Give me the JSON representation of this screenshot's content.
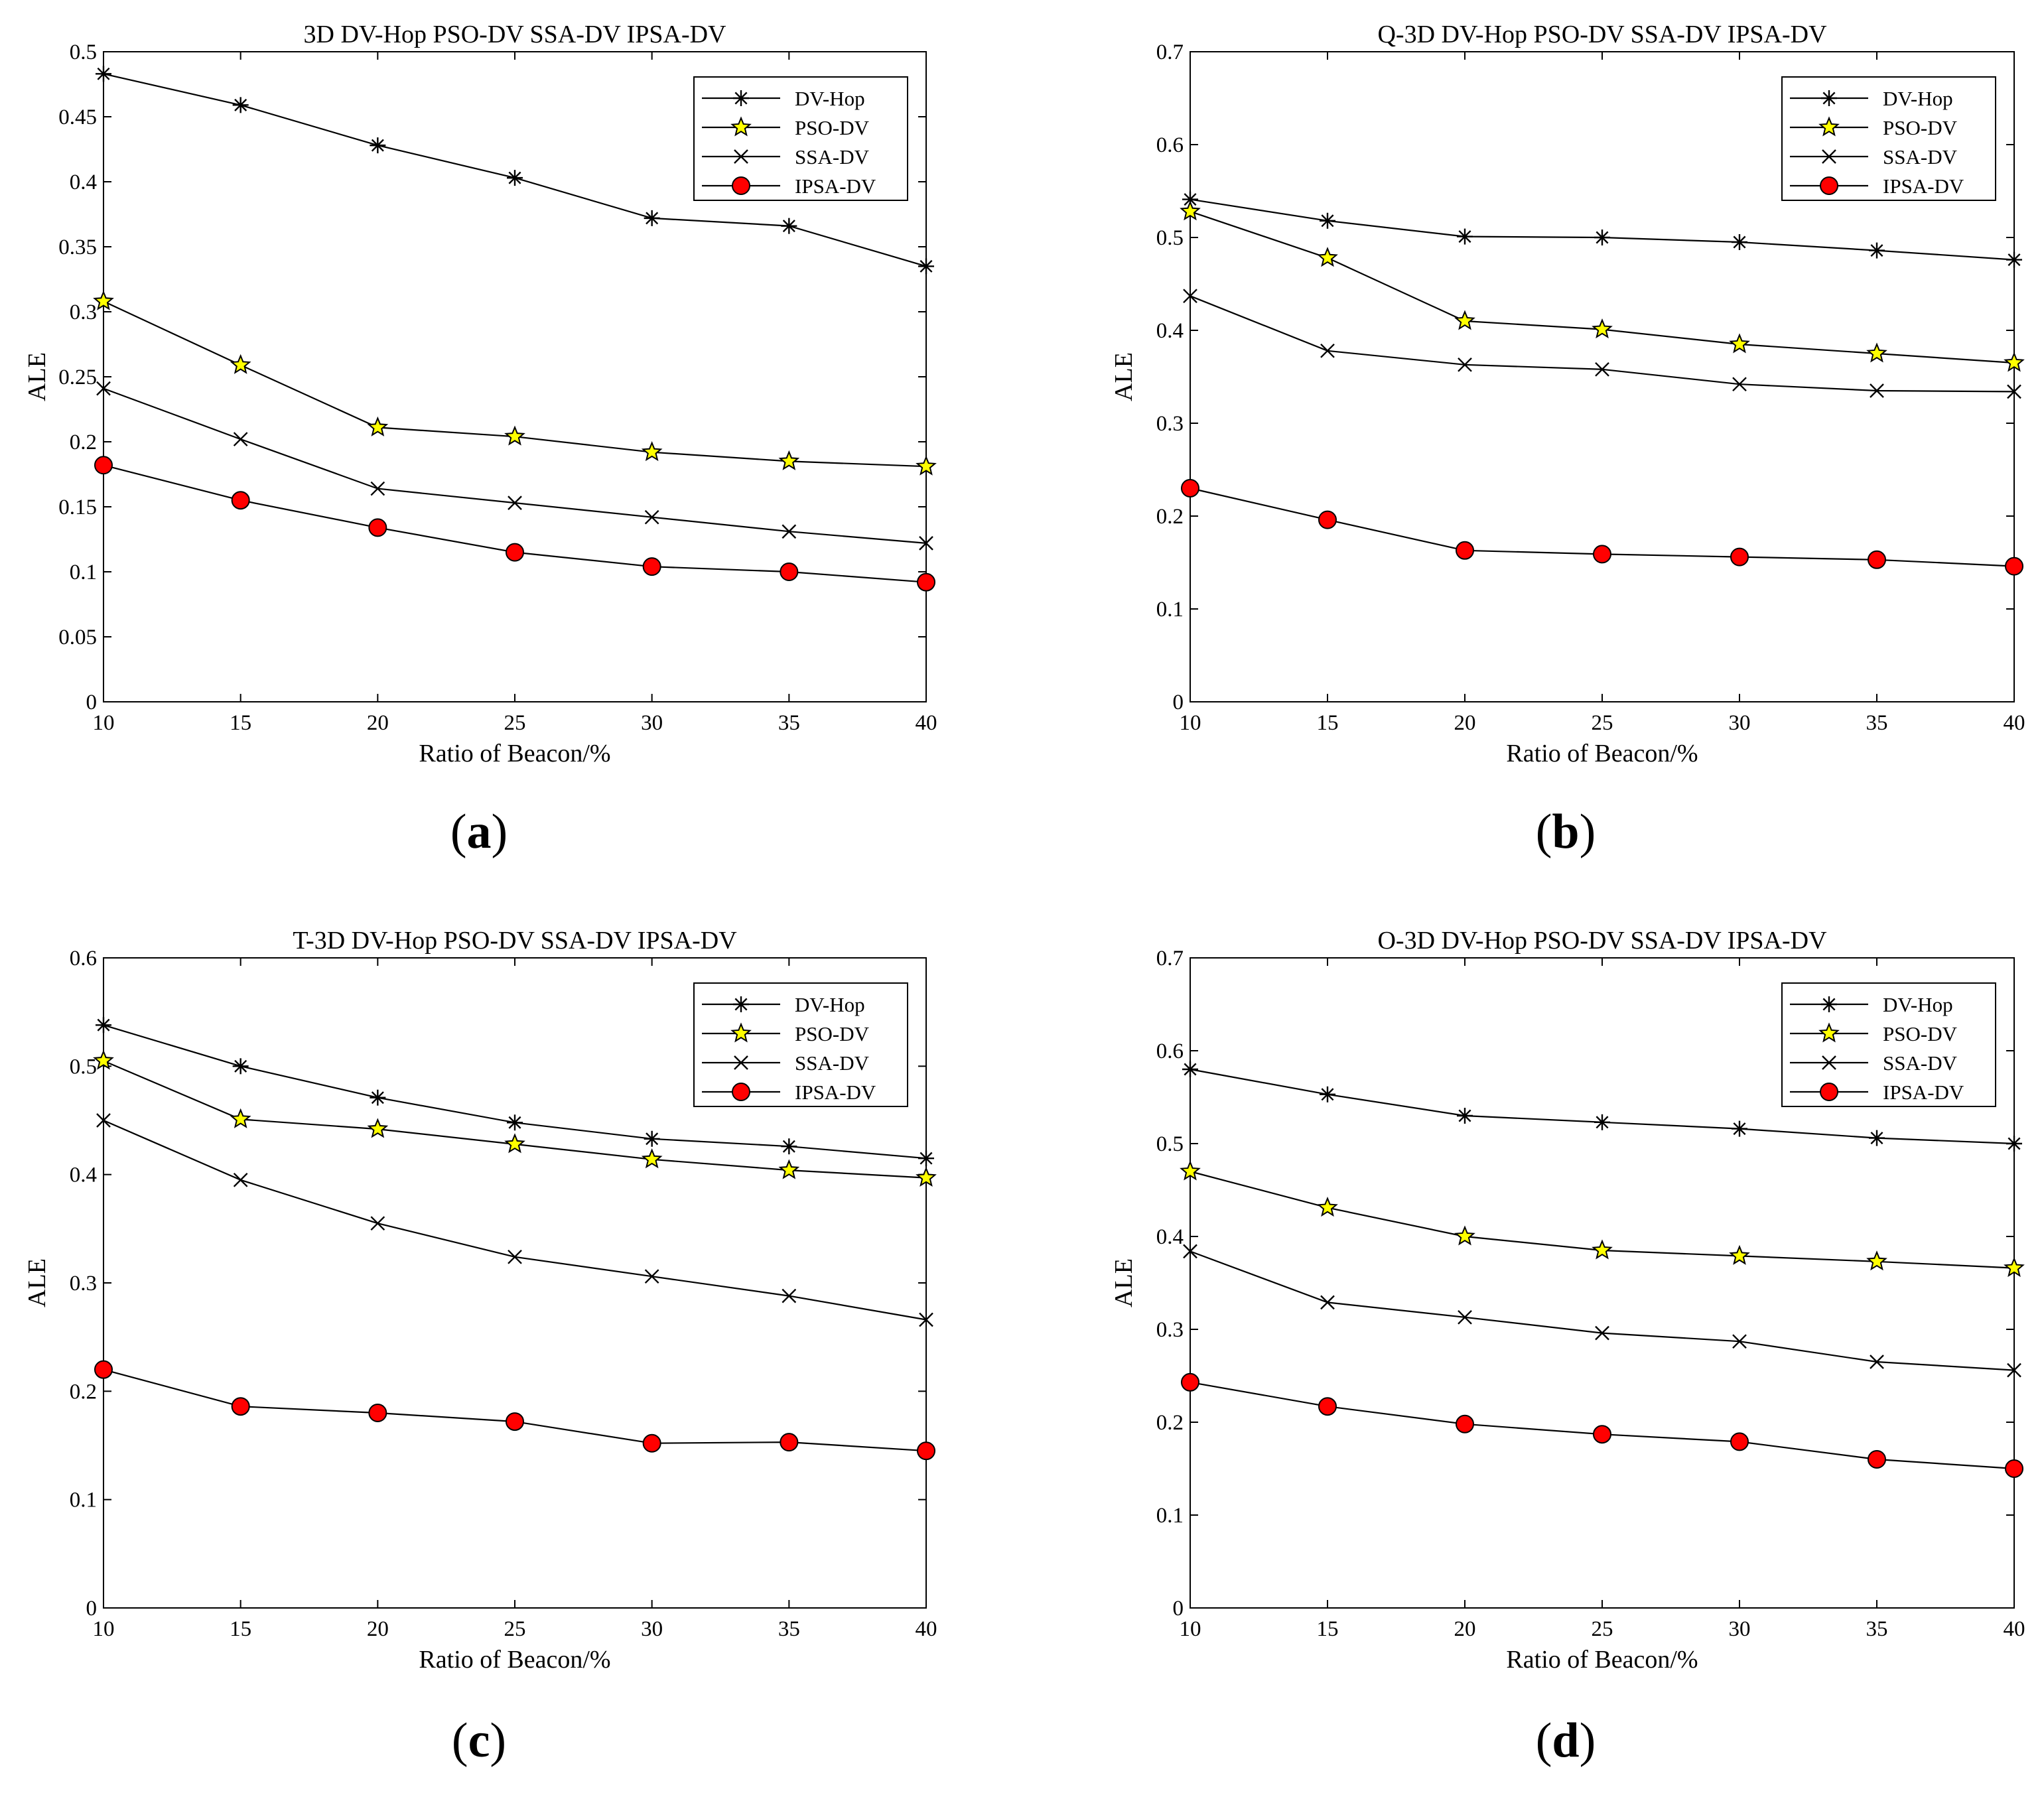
{
  "figure": {
    "colors": {
      "axis": "#000000",
      "line": "#000000",
      "star_fill": "#ffff00",
      "circle_fill": "#ff0000",
      "background": "#ffffff"
    }
  },
  "chart_data": [
    {
      "panel": "a",
      "type": "line",
      "title": "3D DV-Hop PSO-DV SSA-DV IPSA-DV",
      "xlabel": "Ratio of Beacon/%",
      "ylabel": "ALE",
      "xlim": [
        10,
        40
      ],
      "ylim": [
        0,
        0.5
      ],
      "x": [
        10,
        15,
        20,
        25,
        30,
        35,
        40
      ],
      "xticks": [
        "10",
        "15",
        "20",
        "25",
        "30",
        "35",
        "40"
      ],
      "ytick_values": [
        0,
        0.05,
        0.1,
        0.15,
        0.2,
        0.25,
        0.3,
        0.35,
        0.4,
        0.45,
        0.5
      ],
      "yticks": [
        "0",
        "0.05",
        "0.1",
        "0.15",
        "0.2",
        "0.25",
        "0.3",
        "0.35",
        "0.4",
        "0.45",
        "0.5"
      ],
      "legend_position": "top-right",
      "series": [
        {
          "name": "DV-Hop",
          "marker": "asterisk",
          "values": [
            0.483,
            0.459,
            0.428,
            0.403,
            0.372,
            0.366,
            0.335
          ]
        },
        {
          "name": "PSO-DV",
          "marker": "star",
          "values": [
            0.308,
            0.259,
            0.211,
            0.204,
            0.192,
            0.185,
            0.181
          ]
        },
        {
          "name": "SSA-DV",
          "marker": "x",
          "values": [
            0.241,
            0.202,
            0.164,
            0.153,
            0.142,
            0.131,
            0.122
          ]
        },
        {
          "name": "IPSA-DV",
          "marker": "circle",
          "values": [
            0.182,
            0.155,
            0.134,
            0.115,
            0.104,
            0.1,
            0.092
          ]
        }
      ],
      "caption": "(a)"
    },
    {
      "panel": "b",
      "type": "line",
      "title": "Q-3D DV-Hop PSO-DV SSA-DV IPSA-DV",
      "xlabel": "Ratio of Beacon/%",
      "ylabel": "ALE",
      "xlim": [
        10,
        40
      ],
      "ylim": [
        0,
        0.7
      ],
      "x": [
        10,
        15,
        20,
        25,
        30,
        35,
        40
      ],
      "xticks": [
        "10",
        "15",
        "20",
        "25",
        "30",
        "35",
        "40"
      ],
      "ytick_values": [
        0,
        0.1,
        0.2,
        0.3,
        0.4,
        0.5,
        0.6,
        0.7
      ],
      "yticks": [
        "0",
        "0.1",
        "0.2",
        "0.3",
        "0.4",
        "0.5",
        "0.6",
        "0.7"
      ],
      "legend_position": "top-right",
      "series": [
        {
          "name": "DV-Hop",
          "marker": "asterisk",
          "values": [
            0.541,
            0.518,
            0.501,
            0.5,
            0.495,
            0.486,
            0.476
          ]
        },
        {
          "name": "PSO-DV",
          "marker": "star",
          "values": [
            0.528,
            0.478,
            0.41,
            0.401,
            0.385,
            0.375,
            0.365
          ]
        },
        {
          "name": "SSA-DV",
          "marker": "x",
          "values": [
            0.437,
            0.378,
            0.363,
            0.358,
            0.342,
            0.335,
            0.334
          ]
        },
        {
          "name": "IPSA-DV",
          "marker": "circle",
          "values": [
            0.23,
            0.196,
            0.163,
            0.159,
            0.156,
            0.153,
            0.146
          ]
        }
      ],
      "caption": "(b)"
    },
    {
      "panel": "c",
      "type": "line",
      "title": "T-3D DV-Hop PSO-DV SSA-DV IPSA-DV",
      "xlabel": "Ratio of Beacon/%",
      "ylabel": "ALE",
      "xlim": [
        10,
        40
      ],
      "ylim": [
        0,
        0.6
      ],
      "x": [
        10,
        15,
        20,
        25,
        30,
        35,
        40
      ],
      "xticks": [
        "10",
        "15",
        "20",
        "25",
        "30",
        "35",
        "40"
      ],
      "ytick_values": [
        0,
        0.1,
        0.2,
        0.3,
        0.4,
        0.5,
        0.6
      ],
      "yticks": [
        "0",
        "0.1",
        "0.2",
        "0.3",
        "0.4",
        "0.5",
        "0.6"
      ],
      "legend_position": "top-right",
      "series": [
        {
          "name": "DV-Hop",
          "marker": "asterisk",
          "values": [
            0.538,
            0.5,
            0.471,
            0.448,
            0.433,
            0.426,
            0.415
          ]
        },
        {
          "name": "PSO-DV",
          "marker": "star",
          "values": [
            0.505,
            0.451,
            0.442,
            0.428,
            0.414,
            0.404,
            0.397
          ]
        },
        {
          "name": "SSA-DV",
          "marker": "x",
          "values": [
            0.45,
            0.395,
            0.355,
            0.324,
            0.306,
            0.288,
            0.266
          ]
        },
        {
          "name": "IPSA-DV",
          "marker": "circle",
          "values": [
            0.22,
            0.186,
            0.18,
            0.172,
            0.152,
            0.153,
            0.145
          ]
        }
      ],
      "caption": "(c)"
    },
    {
      "panel": "d",
      "type": "line",
      "title": "O-3D DV-Hop PSO-DV SSA-DV IPSA-DV",
      "xlabel": "Ratio of Beacon/%",
      "ylabel": "ALE",
      "xlim": [
        10,
        40
      ],
      "ylim": [
        0,
        0.7
      ],
      "x": [
        10,
        15,
        20,
        25,
        30,
        35,
        40
      ],
      "xticks": [
        "10",
        "15",
        "20",
        "25",
        "30",
        "35",
        "40"
      ],
      "ytick_values": [
        0,
        0.1,
        0.2,
        0.3,
        0.4,
        0.5,
        0.6,
        0.7
      ],
      "yticks": [
        "0",
        "0.1",
        "0.2",
        "0.3",
        "0.4",
        "0.5",
        "0.6",
        "0.7"
      ],
      "legend_position": "top-right",
      "series": [
        {
          "name": "DV-Hop",
          "marker": "asterisk",
          "values": [
            0.58,
            0.553,
            0.53,
            0.523,
            0.516,
            0.506,
            0.5
          ]
        },
        {
          "name": "PSO-DV",
          "marker": "star",
          "values": [
            0.47,
            0.431,
            0.4,
            0.385,
            0.379,
            0.373,
            0.366
          ]
        },
        {
          "name": "SSA-DV",
          "marker": "x",
          "values": [
            0.384,
            0.329,
            0.313,
            0.296,
            0.287,
            0.265,
            0.256
          ]
        },
        {
          "name": "IPSA-DV",
          "marker": "circle",
          "values": [
            0.243,
            0.217,
            0.198,
            0.187,
            0.179,
            0.16,
            0.15
          ]
        }
      ],
      "caption": "(d)"
    }
  ]
}
